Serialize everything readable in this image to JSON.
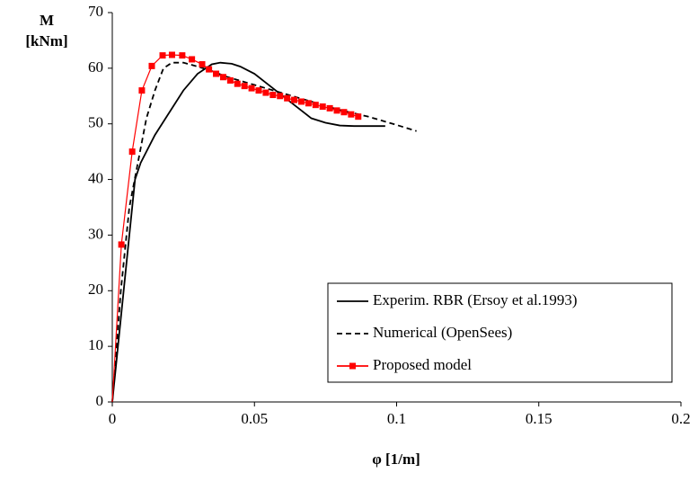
{
  "chart_data": {
    "type": "line",
    "xlabel": "φ [1/m]",
    "ylabel": [
      "M",
      "[kNm]"
    ],
    "xlim": [
      0,
      0.2
    ],
    "xticks": [
      0,
      0.05,
      0.1,
      0.15,
      0.2
    ],
    "ylim": [
      0,
      70
    ],
    "yticks": [
      0,
      10,
      20,
      30,
      40,
      50,
      60,
      70
    ],
    "legend": "lower-right",
    "series": [
      {
        "name": "Experim. RBR (Ersoy et al.1993)",
        "color": "#000000",
        "dash": false,
        "marker": false,
        "x": [
          0,
          0.004,
          0.008,
          0.01,
          0.015,
          0.02,
          0.025,
          0.03,
          0.035,
          0.038,
          0.042,
          0.045,
          0.05,
          0.055,
          0.06,
          0.065,
          0.07,
          0.075,
          0.08,
          0.085,
          0.09,
          0.096
        ],
        "values": [
          0,
          20,
          40,
          43,
          48,
          52,
          56,
          59,
          60.7,
          61,
          60.8,
          60.3,
          59,
          57,
          55,
          53,
          51,
          50.2,
          49.7,
          49.6,
          49.6,
          49.6
        ]
      },
      {
        "name": "Numerical (OpenSees)",
        "color": "#000000",
        "dash": true,
        "marker": false,
        "x": [
          0,
          0.003,
          0.006,
          0.009,
          0.012,
          0.015,
          0.018,
          0.021,
          0.025,
          0.03,
          0.035,
          0.04,
          0.05,
          0.06,
          0.07,
          0.08,
          0.09,
          0.1,
          0.107
        ],
        "values": [
          0,
          20,
          35,
          43,
          51,
          56,
          60,
          61,
          61,
          60.3,
          59.5,
          58.5,
          57,
          55.5,
          54,
          52.5,
          51.3,
          49.8,
          48.7
        ]
      },
      {
        "name": "Proposed model",
        "color": "#ff0000",
        "dash": false,
        "marker": true,
        "x": [
          0,
          0.0032,
          0.007,
          0.0104,
          0.0139,
          0.0177,
          0.021,
          0.0246,
          0.028,
          0.0316,
          0.034,
          0.0365,
          0.039,
          0.0415,
          0.044,
          0.0465,
          0.049,
          0.0515,
          0.054,
          0.0565,
          0.059,
          0.0615,
          0.064,
          0.0665,
          0.069,
          0.0715,
          0.074,
          0.0765,
          0.079,
          0.0815,
          0.084,
          0.0865
        ],
        "values": [
          0,
          28.3,
          45,
          56,
          60.4,
          62.3,
          62.4,
          62.3,
          61.6,
          60.7,
          59.8,
          59,
          58.4,
          57.8,
          57.2,
          56.8,
          56.4,
          56,
          55.6,
          55.2,
          55,
          54.6,
          54.3,
          54,
          53.7,
          53.4,
          53.1,
          52.8,
          52.4,
          52.1,
          51.7,
          51.3
        ]
      }
    ]
  }
}
